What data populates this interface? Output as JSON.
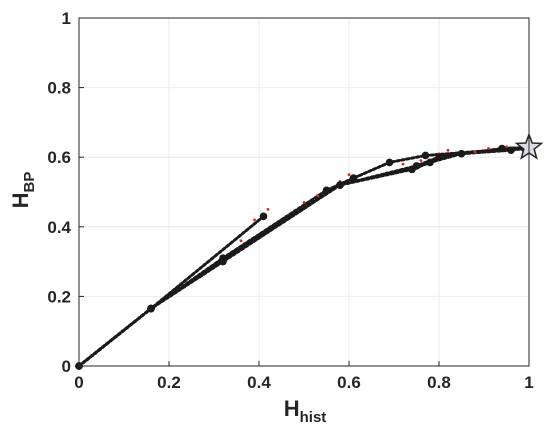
{
  "chart_data": {
    "type": "line",
    "title": "",
    "xlabel": {
      "main": "H",
      "sub": "hist"
    },
    "ylabel": {
      "main": "H",
      "sub": "BP"
    },
    "xlim": [
      0,
      1
    ],
    "ylim": [
      0,
      1
    ],
    "xticks": [
      0,
      0.2,
      0.4,
      0.6,
      0.8,
      1
    ],
    "yticks": [
      0,
      0.2,
      0.4,
      0.6,
      0.8,
      1
    ],
    "xtick_labels": [
      "0",
      "0.2",
      "0.4",
      "0.6",
      "0.8",
      "1"
    ],
    "ytick_labels": [
      "0",
      "0.2",
      "0.4",
      "0.6",
      "0.8",
      "1"
    ],
    "grid": true,
    "colors": {
      "series": "#1a1a1a",
      "noise": "#d62728",
      "star_fill": "#d9dde3",
      "axis": "#262626",
      "grid": "#ebebeb"
    },
    "series": [
      {
        "x": [
          0,
          0.16,
          0.41
        ],
        "y": [
          0,
          0.165,
          0.43
        ]
      },
      {
        "x": [
          0,
          0.16,
          0.32,
          0.55,
          0.61,
          0.69,
          0.77,
          1.0
        ],
        "y": [
          0,
          0.165,
          0.31,
          0.505,
          0.54,
          0.585,
          0.605,
          0.628
        ]
      },
      {
        "x": [
          0,
          0.16,
          0.32,
          0.58,
          0.74,
          0.78,
          0.85,
          0.96,
          0.99,
          1.0
        ],
        "y": [
          0,
          0.165,
          0.305,
          0.52,
          0.565,
          0.585,
          0.61,
          0.62,
          0.625,
          0.628
        ]
      },
      {
        "x": [
          0,
          0.16,
          0.32,
          0.58,
          0.75,
          0.8,
          0.94,
          1.0
        ],
        "y": [
          0,
          0.165,
          0.3,
          0.52,
          0.575,
          0.6,
          0.625,
          0.628
        ]
      }
    ],
    "noise_points": {
      "x": [
        0.39,
        0.42,
        0.36,
        0.58,
        0.6,
        0.53,
        0.72,
        0.76,
        0.8,
        0.82,
        0.88,
        0.91,
        0.95,
        0.5
      ],
      "y": [
        0.42,
        0.45,
        0.36,
        0.53,
        0.55,
        0.49,
        0.58,
        0.59,
        0.61,
        0.62,
        0.615,
        0.625,
        0.63,
        0.47
      ]
    },
    "end_marker": {
      "shape": "star",
      "x": 1.0,
      "y": 0.628
    }
  }
}
